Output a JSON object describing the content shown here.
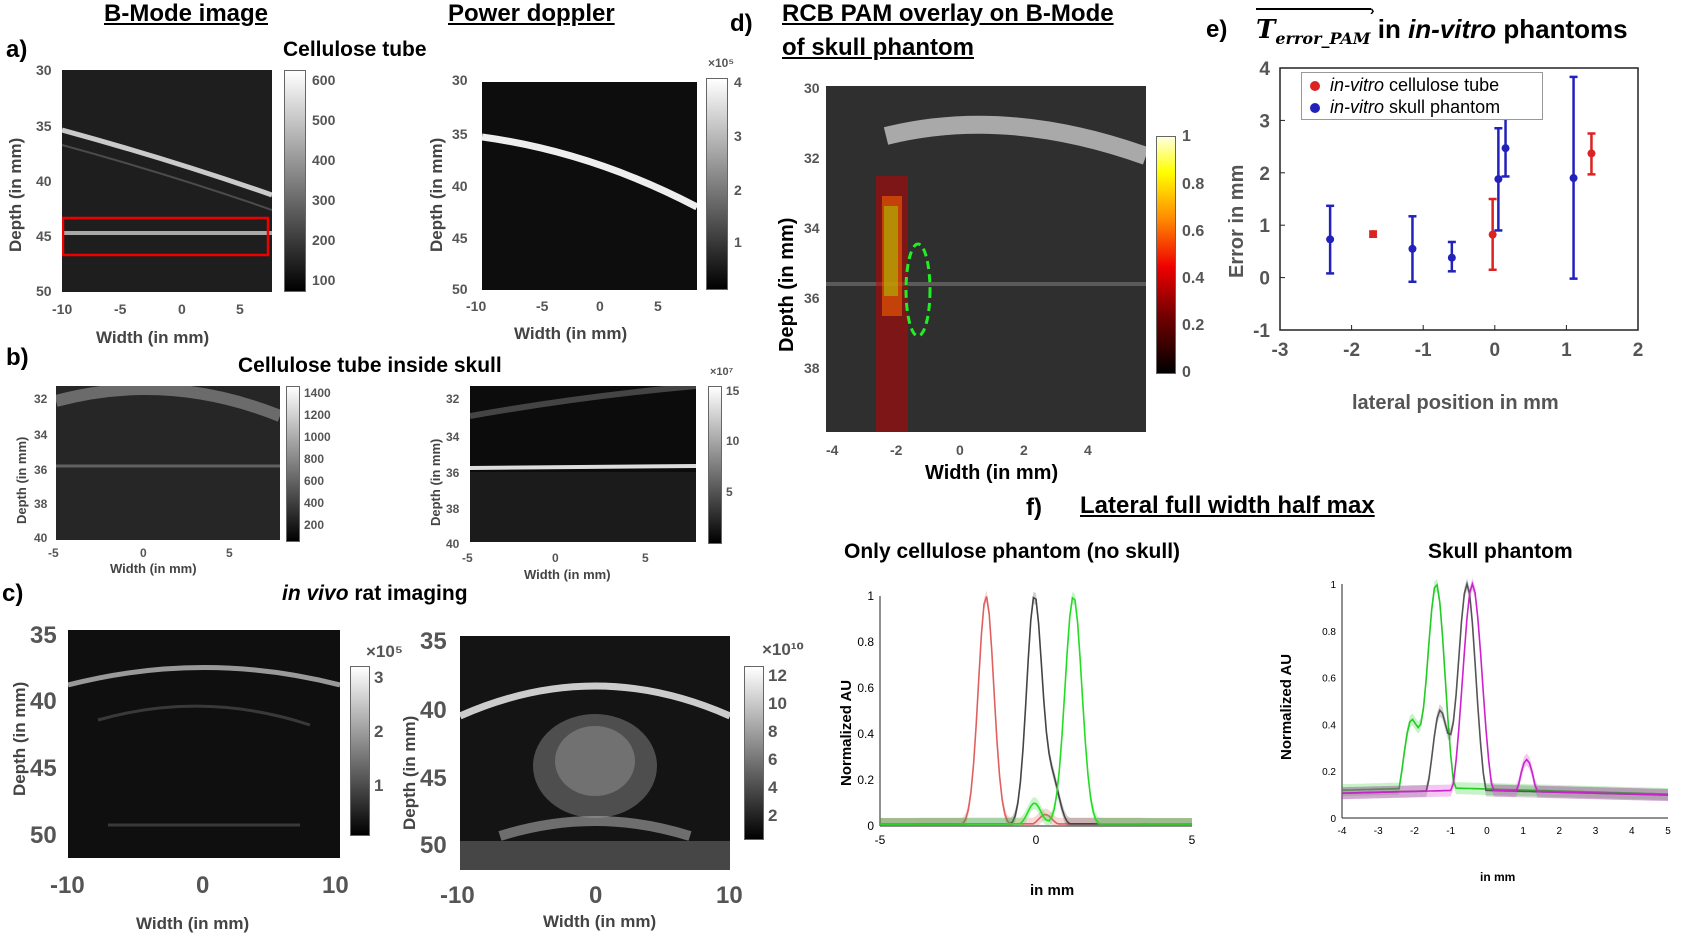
{
  "panel_labels": {
    "a": "a)",
    "b": "b)",
    "c": "c)",
    "d": "d)",
    "e": "e)",
    "f": "f)"
  },
  "panel_a": {
    "title_bmode": "B-Mode image",
    "title_pd": "Power doppler",
    "label_cellulose": "Cellulose tube",
    "y_label": "Depth (in mm)",
    "x_label": "Width (in mm)",
    "y_ticks": [
      "30",
      "35",
      "40",
      "45",
      "50"
    ],
    "x_ticks": [
      "-10",
      "-5",
      "0",
      "5"
    ],
    "cbar_bmode": [
      "600",
      "500",
      "400",
      "300",
      "200",
      "100"
    ],
    "cbar_pd": [
      "4",
      "3",
      "2",
      "1"
    ],
    "cbar_pd_exp": "×10⁵"
  },
  "panel_b": {
    "title": "Cellulose tube inside skull",
    "y_label": "Depth (in mm)",
    "x_label": "Width (in mm)",
    "y_ticks": [
      "32",
      "34",
      "36",
      "38",
      "40"
    ],
    "x_ticks": [
      "-5",
      "0",
      "5"
    ],
    "cbar_bmode": [
      "1400",
      "1200",
      "1000",
      "800",
      "600",
      "400",
      "200"
    ],
    "cbar_pd": [
      "15",
      "10",
      "5"
    ],
    "cbar_pd_exp": "×10⁷"
  },
  "panel_c": {
    "title_italic": "in vivo",
    "title_rest": " rat imaging",
    "y_label_left": "Depth (in mm)",
    "y_label_right": "Depth (in mm)",
    "x_label": "Width (in mm)",
    "y_ticks": [
      "35",
      "40",
      "45",
      "50"
    ],
    "x_ticks": [
      "-10",
      "0",
      "10"
    ],
    "cbar_left": [
      "3",
      "2",
      "1"
    ],
    "cbar_left_exp": "×10⁵",
    "cbar_right": [
      "12",
      "10",
      "8",
      "6",
      "4",
      "2"
    ],
    "cbar_right_exp": "×10¹⁰"
  },
  "panel_d": {
    "title_line1": "RCB PAM overlay on B-Mode",
    "title_line2": "of skull phantom",
    "y_label": "Depth (in mm)",
    "x_label": "Width (in mm)",
    "y_ticks": [
      "30",
      "32",
      "34",
      "36",
      "38"
    ],
    "x_ticks": [
      "-4",
      "-2",
      "0",
      "2",
      "4"
    ],
    "cbar": [
      "1",
      "0.8",
      "0.6",
      "0.4",
      "0.2",
      "0"
    ]
  },
  "panel_e": {
    "title_math": "T",
    "title_math_sub": "error_PAM",
    "title_in": " in ",
    "title_italic": "in-vitro",
    "title_rest": " phantoms",
    "y_label": "Error in mm",
    "x_label": "lateral position in mm",
    "legend_cellulose_italic": "in-vitro",
    "legend_cellulose_rest": " cellulose tube",
    "legend_skull_italic": "in-vitro",
    "legend_skull_rest": " skull phantom",
    "red_color": "#dd2222",
    "blue_color": "#2222bb"
  },
  "panel_f": {
    "title": "Lateral full width half max",
    "left_title": "Only cellulose phantom (no skull)",
    "right_title": "Skull phantom",
    "y_label": "Normalized AU",
    "x_label": "in mm"
  },
  "chart_data": [
    {
      "type": "scatter",
      "title": "",
      "xlabel": "lateral position in mm",
      "ylabel": "Error in mm",
      "xlim": [
        -3,
        2
      ],
      "ylim": [
        -1,
        4
      ],
      "x_ticks": [
        -3,
        -2,
        -1,
        0,
        1,
        2
      ],
      "y_ticks": [
        -1,
        0,
        1,
        2,
        3,
        4
      ],
      "legend": "top-left",
      "series": [
        {
          "name": "in-vitro cellulose tube",
          "color": "#dd2222",
          "points": [
            {
              "x": -1.7,
              "y": 0.83,
              "lo": 0.78,
              "hi": 0.88
            },
            {
              "x": -0.03,
              "y": 0.82,
              "lo": 0.15,
              "hi": 1.5
            },
            {
              "x": 1.35,
              "y": 2.37,
              "lo": 1.97,
              "hi": 2.75
            }
          ]
        },
        {
          "name": "in-vitro skull phantom",
          "color": "#2222bb",
          "points": [
            {
              "x": -2.3,
              "y": 0.73,
              "lo": 0.08,
              "hi": 1.37
            },
            {
              "x": -1.15,
              "y": 0.55,
              "lo": -0.08,
              "hi": 1.17
            },
            {
              "x": -0.6,
              "y": 0.38,
              "lo": 0.12,
              "hi": 0.68
            },
            {
              "x": 0.05,
              "y": 1.88,
              "lo": 0.9,
              "hi": 2.85
            },
            {
              "x": 0.15,
              "y": 2.47,
              "lo": 1.93,
              "hi": 3.03
            },
            {
              "x": 1.1,
              "y": 1.9,
              "lo": -0.02,
              "hi": 3.83
            }
          ]
        }
      ]
    },
    {
      "type": "line",
      "title": "Only cellulose phantom (no skull)",
      "xlabel": "in mm",
      "ylabel": "Normalized AU",
      "xlim": [
        -5,
        5
      ],
      "ylim": [
        0,
        1
      ],
      "x_ticks": [
        -5,
        0,
        5
      ],
      "y_ticks": [
        0,
        0.2,
        0.4,
        0.6,
        0.8,
        1
      ],
      "series": [
        {
          "color": "#e06060",
          "peak": -1.6,
          "width": 0.35,
          "secondary": [
            0.3,
            0.05
          ]
        },
        {
          "color": "#444444",
          "peak": -0.05,
          "width": 0.35,
          "secondary": [
            0.55,
            0.18
          ]
        },
        {
          "color": "#22dd22",
          "peak": 1.2,
          "width": 0.38,
          "secondary": [
            -0.05,
            0.1
          ]
        }
      ]
    },
    {
      "type": "line",
      "title": "Skull phantom",
      "xlabel": "in mm",
      "ylabel": "Normalized AU",
      "xlim": [
        -4,
        5
      ],
      "ylim": [
        0,
        1
      ],
      "x_ticks": [
        -4,
        -3,
        -2,
        -1,
        0,
        1,
        2,
        3,
        4,
        5
      ],
      "y_ticks": [
        0,
        0.2,
        0.4,
        0.6,
        0.8,
        1
      ],
      "series": [
        {
          "color": "#22cc22",
          "peak": -1.4,
          "width": 0.35,
          "secondary": [
            -2.1,
            0.4
          ],
          "tail": 0.13
        },
        {
          "color": "#555555",
          "peak": -0.55,
          "width": 0.35,
          "secondary": [
            -1.3,
            0.45
          ],
          "tail": 0.12
        },
        {
          "color": "#cc22cc",
          "peak": -0.4,
          "width": 0.38,
          "secondary": [
            1.1,
            0.25
          ],
          "tail": 0.12
        }
      ]
    }
  ]
}
